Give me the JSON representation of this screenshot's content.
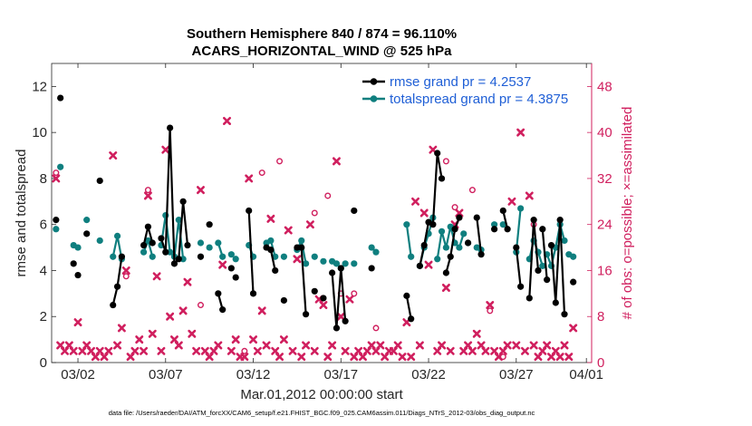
{
  "chart_data": {
    "type": "line",
    "title": "Southern Hemisphere 840 / 874 = 96.110%",
    "subtitle": "ACARS_HORIZONTAL_WIND @ 525 hPa",
    "xlabel": "Mar.01,2012 00:00:00 start",
    "ylabel_left": "rmse and totalspread",
    "ylabel_right": "# of obs: o=possible; ×=assimilated",
    "footnote": "data file: /Users/raeder/DAI/ATM_forcXX/CAM6_setup/f.e21.FHIST_BGC.f09_025.CAM6assim.011/Diags_NTrS_2012-03/obs_diag_output.nc",
    "xlim": [
      0.5,
      31.3
    ],
    "ylim_left": [
      0,
      13
    ],
    "ylim_right": [
      0,
      52
    ],
    "x_ticks": [
      {
        "x": 2,
        "label": "03/02"
      },
      {
        "x": 7,
        "label": "03/07"
      },
      {
        "x": 12,
        "label": "03/12"
      },
      {
        "x": 17,
        "label": "03/17"
      },
      {
        "x": 22,
        "label": "03/22"
      },
      {
        "x": 27,
        "label": "03/27"
      },
      {
        "x": 31,
        "label": "04/01"
      }
    ],
    "y_ticks_left": [
      "0",
      "2",
      "4",
      "6",
      "8",
      "10",
      "12"
    ],
    "y_ticks_right": [
      "0",
      "8",
      "16",
      "24",
      "32",
      "40",
      "48"
    ],
    "legend": [
      {
        "label": "rmse grand pr = 4.2537",
        "color": "#000000"
      },
      {
        "label": "totalspread grand pr = 4.3875",
        "color": "#0f7f7f"
      }
    ],
    "colors": {
      "rmse": "#000000",
      "spread": "#0f7f7f",
      "obs": "#d01f5e",
      "axis_right": "#d01f5e"
    },
    "series": [
      {
        "name": "rmse",
        "segments": [
          [
            [
              0.75,
              6.2
            ]
          ],
          [
            [
              1.0,
              11.5
            ]
          ],
          [
            [
              1.75,
              4.3
            ]
          ],
          [
            [
              2.0,
              3.8
            ]
          ],
          [
            [
              2.5,
              5.6
            ]
          ],
          [
            [
              3.25,
              7.9
            ]
          ],
          [
            [
              4.0,
              2.5
            ],
            [
              4.25,
              3.3
            ],
            [
              4.5,
              4.6
            ]
          ],
          [
            [
              5.75,
              5.1
            ],
            [
              6.0,
              5.9
            ],
            [
              6.25,
              5.2
            ]
          ],
          [
            [
              6.75,
              5.4
            ],
            [
              7.0,
              4.8
            ],
            [
              7.25,
              10.2
            ],
            [
              7.5,
              4.3
            ],
            [
              7.75,
              4.5
            ],
            [
              8.0,
              7.0
            ],
            [
              8.25,
              5.1
            ]
          ],
          [
            [
              9.0,
              4.6
            ]
          ],
          [
            [
              9.5,
              6.0
            ]
          ],
          [
            [
              10.0,
              3.0
            ],
            [
              10.25,
              2.3
            ]
          ],
          [
            [
              10.75,
              4.1
            ]
          ],
          [
            [
              11.0,
              3.7
            ]
          ],
          [
            [
              11.75,
              6.6
            ],
            [
              12.0,
              3.0
            ]
          ],
          [
            [
              12.75,
              5.0
            ],
            [
              13.0,
              4.9
            ],
            [
              13.25,
              4.0
            ]
          ],
          [
            [
              13.75,
              2.7
            ]
          ],
          [
            [
              14.5,
              5.0
            ],
            [
              14.75,
              5.0
            ],
            [
              15.0,
              2.1
            ]
          ],
          [
            [
              15.5,
              3.1
            ]
          ],
          [
            [
              16.0,
              2.8
            ]
          ],
          [
            [
              16.5,
              3.9
            ],
            [
              16.75,
              1.5
            ],
            [
              17.0,
              4.1
            ],
            [
              17.25,
              1.8
            ]
          ],
          [
            [
              17.75,
              6.6
            ]
          ],
          [
            [
              18.75,
              4.1
            ]
          ],
          [
            [
              20.75,
              2.9
            ],
            [
              21.0,
              1.9
            ]
          ],
          [
            [
              21.5,
              4.2
            ],
            [
              21.75,
              5.1
            ],
            [
              22.0,
              6.1
            ]
          ],
          [
            [
              22.25,
              6.0
            ],
            [
              22.5,
              9.1
            ],
            [
              22.75,
              8.0
            ]
          ],
          [
            [
              23.0,
              3.9
            ],
            [
              23.25,
              4.6
            ],
            [
              23.5,
              5.8
            ],
            [
              23.75,
              6.3
            ]
          ],
          [
            [
              24.25,
              5.2
            ]
          ],
          [
            [
              24.75,
              6.3
            ],
            [
              25.0,
              4.7
            ]
          ],
          [
            [
              25.75,
              5.8
            ]
          ],
          [
            [
              26.25,
              6.6
            ],
            [
              26.5,
              5.8
            ]
          ],
          [
            [
              27.0,
              5.0
            ],
            [
              27.25,
              3.3
            ]
          ],
          [
            [
              27.75,
              2.8
            ],
            [
              28.0,
              6.2
            ],
            [
              28.25,
              4.0
            ]
          ],
          [
            [
              28.5,
              5.8
            ],
            [
              28.75,
              3.6
            ]
          ],
          [
            [
              29.0,
              5.1
            ],
            [
              29.25,
              2.6
            ],
            [
              29.5,
              6.2
            ],
            [
              29.75,
              2.1
            ]
          ],
          [
            [
              30.25,
              3.5
            ]
          ]
        ]
      },
      {
        "name": "totalspread",
        "segments": [
          [
            [
              0.75,
              5.8
            ]
          ],
          [
            [
              1.0,
              8.5
            ]
          ],
          [
            [
              1.75,
              5.1
            ]
          ],
          [
            [
              2.0,
              5.0
            ]
          ],
          [
            [
              2.5,
              6.2
            ]
          ],
          [
            [
              3.25,
              5.3
            ]
          ],
          [
            [
              4.0,
              4.6
            ],
            [
              4.25,
              5.5
            ],
            [
              4.5,
              4.5
            ]
          ],
          [
            [
              5.75,
              4.8
            ],
            [
              6.0,
              5.3
            ],
            [
              6.25,
              4.6
            ]
          ],
          [
            [
              6.75,
              5.1
            ],
            [
              7.0,
              6.4
            ],
            [
              7.25,
              4.8
            ],
            [
              7.5,
              4.6
            ],
            [
              7.75,
              6.2
            ],
            [
              8.0,
              4.5
            ]
          ],
          [
            [
              9.0,
              5.2
            ]
          ],
          [
            [
              9.5,
              5.0
            ]
          ],
          [
            [
              10.0,
              5.2
            ],
            [
              10.25,
              4.6
            ]
          ],
          [
            [
              10.75,
              4.7
            ]
          ],
          [
            [
              11.0,
              4.5
            ]
          ],
          [
            [
              11.75,
              5.1
            ],
            [
              12.0,
              4.6
            ]
          ],
          [
            [
              12.75,
              5.2
            ],
            [
              13.0,
              5.3
            ],
            [
              13.25,
              4.6
            ]
          ],
          [
            [
              13.75,
              4.6
            ]
          ],
          [
            [
              14.5,
              4.9
            ],
            [
              14.75,
              5.3
            ],
            [
              15.0,
              4.3
            ]
          ],
          [
            [
              15.5,
              4.6
            ]
          ],
          [
            [
              16.0,
              4.4
            ]
          ],
          [
            [
              16.5,
              4.4
            ],
            [
              16.75,
              4.3
            ],
            [
              17.0,
              4.1
            ],
            [
              17.25,
              4.3
            ]
          ],
          [
            [
              17.75,
              4.3
            ]
          ],
          [
            [
              18.75,
              5.0
            ],
            [
              19.0,
              4.8
            ]
          ],
          [
            [
              20.75,
              6.0
            ],
            [
              21.0,
              4.6
            ]
          ],
          [
            [
              21.5,
              4.2
            ],
            [
              21.75,
              5.0
            ],
            [
              22.0,
              5.6
            ],
            [
              22.25,
              6.3
            ]
          ],
          [
            [
              22.5,
              4.5
            ],
            [
              22.75,
              5.7
            ],
            [
              23.0,
              5.0
            ],
            [
              23.25,
              5.9
            ],
            [
              23.5,
              5.2
            ],
            [
              23.75,
              5.0
            ],
            [
              24.0,
              5.6
            ]
          ],
          [
            [
              24.25,
              5.2
            ]
          ],
          [
            [
              24.75,
              5.0
            ],
            [
              25.0,
              4.9
            ]
          ],
          [
            [
              25.75,
              6.0
            ]
          ],
          [
            [
              26.25,
              6.0
            ]
          ],
          [
            [
              27.0,
              4.8
            ],
            [
              27.25,
              6.7
            ]
          ],
          [
            [
              27.75,
              4.5
            ],
            [
              28.0,
              5.3
            ],
            [
              28.25,
              4.8
            ],
            [
              28.5,
              4.2
            ]
          ],
          [
            [
              28.75,
              4.7
            ],
            [
              29.0,
              4.2
            ],
            [
              29.25,
              5.0
            ],
            [
              29.5,
              6.0
            ],
            [
              29.75,
              5.3
            ]
          ],
          [
            [
              30.0,
              4.7
            ]
          ],
          [
            [
              30.25,
              4.6
            ]
          ]
        ]
      }
    ],
    "obs_possible": [
      [
        0.75,
        33
      ],
      [
        4.75,
        15
      ],
      [
        6.0,
        30
      ],
      [
        9.0,
        10
      ],
      [
        11.5,
        2
      ],
      [
        12.5,
        33
      ],
      [
        13.5,
        35
      ],
      [
        15.5,
        26
      ],
      [
        16.25,
        29
      ],
      [
        17.0,
        12
      ],
      [
        17.75,
        12
      ],
      [
        19.0,
        6
      ],
      [
        23.0,
        35
      ],
      [
        23.5,
        27
      ],
      [
        24.5,
        30
      ],
      [
        25.5,
        9
      ],
      [
        26.25,
        1
      ],
      [
        28.0,
        24
      ]
    ],
    "obs_assimilated": [
      [
        0.75,
        32
      ],
      [
        1.0,
        3
      ],
      [
        1.25,
        2
      ],
      [
        1.5,
        3
      ],
      [
        1.75,
        2
      ],
      [
        2.0,
        7
      ],
      [
        2.25,
        2
      ],
      [
        2.5,
        3
      ],
      [
        2.75,
        2
      ],
      [
        3.0,
        1
      ],
      [
        3.25,
        2
      ],
      [
        3.5,
        1
      ],
      [
        3.75,
        2
      ],
      [
        4.0,
        36
      ],
      [
        4.25,
        3
      ],
      [
        4.5,
        6
      ],
      [
        4.75,
        16
      ],
      [
        5.0,
        1
      ],
      [
        5.25,
        2
      ],
      [
        5.5,
        4
      ],
      [
        5.75,
        2
      ],
      [
        6.0,
        29
      ],
      [
        6.25,
        5
      ],
      [
        6.5,
        15
      ],
      [
        6.75,
        2
      ],
      [
        7.0,
        37
      ],
      [
        7.25,
        8
      ],
      [
        7.5,
        4
      ],
      [
        7.75,
        3
      ],
      [
        8.0,
        9
      ],
      [
        8.25,
        14
      ],
      [
        8.5,
        5
      ],
      [
        8.75,
        2
      ],
      [
        9.0,
        30
      ],
      [
        9.25,
        2
      ],
      [
        9.5,
        1
      ],
      [
        9.75,
        2
      ],
      [
        10.0,
        3
      ],
      [
        10.25,
        17
      ],
      [
        10.5,
        42
      ],
      [
        10.75,
        2
      ],
      [
        11.0,
        4
      ],
      [
        11.25,
        1
      ],
      [
        11.5,
        1
      ],
      [
        11.75,
        32
      ],
      [
        12.0,
        4
      ],
      [
        12.25,
        2
      ],
      [
        12.5,
        9
      ],
      [
        12.75,
        3
      ],
      [
        13.0,
        25
      ],
      [
        13.25,
        2
      ],
      [
        13.5,
        1
      ],
      [
        13.75,
        4
      ],
      [
        14.0,
        23
      ],
      [
        14.25,
        2
      ],
      [
        14.5,
        18
      ],
      [
        14.75,
        1
      ],
      [
        15.0,
        3
      ],
      [
        15.25,
        24
      ],
      [
        15.5,
        2
      ],
      [
        15.75,
        11
      ],
      [
        16.0,
        10
      ],
      [
        16.25,
        1
      ],
      [
        16.5,
        3
      ],
      [
        16.75,
        35
      ],
      [
        17.0,
        8
      ],
      [
        17.25,
        2
      ],
      [
        17.5,
        11
      ],
      [
        17.75,
        1
      ],
      [
        18.0,
        2
      ],
      [
        18.25,
        1
      ],
      [
        18.5,
        2
      ],
      [
        18.75,
        3
      ],
      [
        19.0,
        2
      ],
      [
        19.25,
        3
      ],
      [
        19.5,
        1
      ],
      [
        19.75,
        2
      ],
      [
        20.0,
        2
      ],
      [
        20.25,
        3
      ],
      [
        20.5,
        1
      ],
      [
        20.75,
        7
      ],
      [
        21.0,
        1
      ],
      [
        21.25,
        28
      ],
      [
        21.5,
        3
      ],
      [
        21.75,
        26
      ],
      [
        22.0,
        17
      ],
      [
        22.25,
        37
      ],
      [
        22.5,
        2
      ],
      [
        22.75,
        3
      ],
      [
        23.0,
        13
      ],
      [
        23.25,
        2
      ],
      [
        23.5,
        24
      ],
      [
        23.75,
        26
      ],
      [
        24.0,
        2
      ],
      [
        24.25,
        3
      ],
      [
        24.5,
        2
      ],
      [
        24.75,
        5
      ],
      [
        25.0,
        3
      ],
      [
        25.25,
        2
      ],
      [
        25.5,
        10
      ],
      [
        25.75,
        2
      ],
      [
        26.0,
        1
      ],
      [
        26.25,
        2
      ],
      [
        26.5,
        3
      ],
      [
        26.75,
        28
      ],
      [
        27.0,
        3
      ],
      [
        27.25,
        40
      ],
      [
        27.5,
        2
      ],
      [
        27.75,
        29
      ],
      [
        28.0,
        3
      ],
      [
        28.25,
        1
      ],
      [
        28.5,
        2
      ],
      [
        28.75,
        3
      ],
      [
        29.0,
        1
      ],
      [
        29.25,
        2
      ],
      [
        29.5,
        1
      ],
      [
        29.75,
        3
      ],
      [
        30.0,
        1
      ],
      [
        30.25,
        6
      ]
    ]
  }
}
